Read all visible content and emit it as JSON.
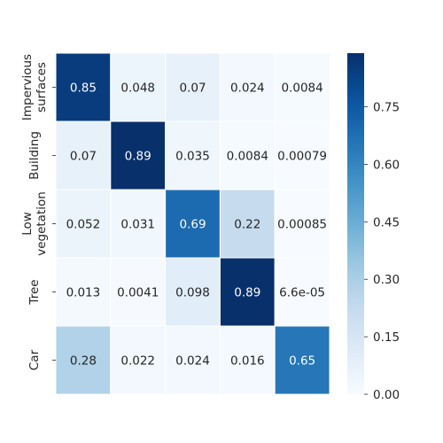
{
  "chart_data": {
    "type": "heatmap",
    "title": "",
    "xlabel": "",
    "ylabel": "",
    "row_labels": [
      [
        "Impervious",
        "surfaces"
      ],
      [
        "Building"
      ],
      [
        "Low",
        "vegetation"
      ],
      [
        "Tree"
      ],
      [
        "Car"
      ]
    ],
    "col_labels": [],
    "cell_labels": [
      [
        "0.85",
        "0.048",
        "0.07",
        "0.024",
        "0.0084"
      ],
      [
        "0.07",
        "0.89",
        "0.035",
        "0.0084",
        "0.00079"
      ],
      [
        "0.052",
        "0.031",
        "0.69",
        "0.22",
        "0.00085"
      ],
      [
        "0.013",
        "0.0041",
        "0.098",
        "0.89",
        "6.6e-05"
      ],
      [
        "0.28",
        "0.022",
        "0.024",
        "0.016",
        "0.65"
      ]
    ],
    "values": [
      [
        0.85,
        0.048,
        0.07,
        0.024,
        0.0084
      ],
      [
        0.07,
        0.89,
        0.035,
        0.0084,
        0.00079
      ],
      [
        0.052,
        0.031,
        0.69,
        0.22,
        0.00085
      ],
      [
        0.013,
        0.0041,
        0.098,
        0.89,
        6.6e-05
      ],
      [
        0.28,
        0.022,
        0.024,
        0.016,
        0.65
      ]
    ],
    "colormap": "Blues",
    "vmin": 0.0,
    "vmax": 0.89,
    "colorbar": {
      "ticks": [
        0.0,
        0.15,
        0.3,
        0.45,
        0.6,
        0.75
      ],
      "tick_labels": [
        "0.00",
        "0.15",
        "0.30",
        "0.45",
        "0.60",
        "0.75"
      ]
    },
    "grid": true,
    "grid_color": "#ffffff",
    "light_text_color": "#ffffff",
    "dark_text_color": "#262626",
    "legend": "colorbar-right"
  }
}
